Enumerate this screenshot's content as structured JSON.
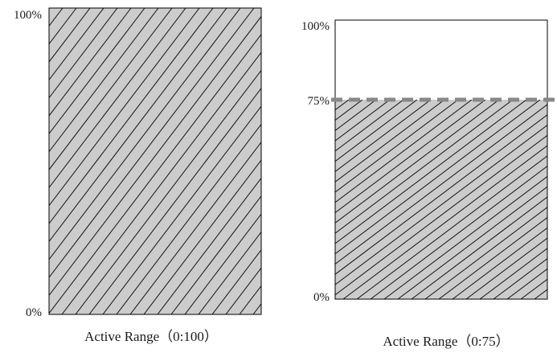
{
  "colors": {
    "fill": "#cccccc",
    "hatch": "#111111",
    "border": "#000000",
    "threshold_line": "#888888"
  },
  "panels": [
    {
      "top_label": "100%",
      "bottom_label": "0%",
      "caption": "Active Range（0:100）",
      "range_min_pct": 0,
      "range_max_pct": 100
    },
    {
      "top_label": "100%",
      "threshold_label": "75%",
      "bottom_label": "0%",
      "caption": "Active Range（0:75）",
      "range_min_pct": 0,
      "range_max_pct": 75
    }
  ]
}
